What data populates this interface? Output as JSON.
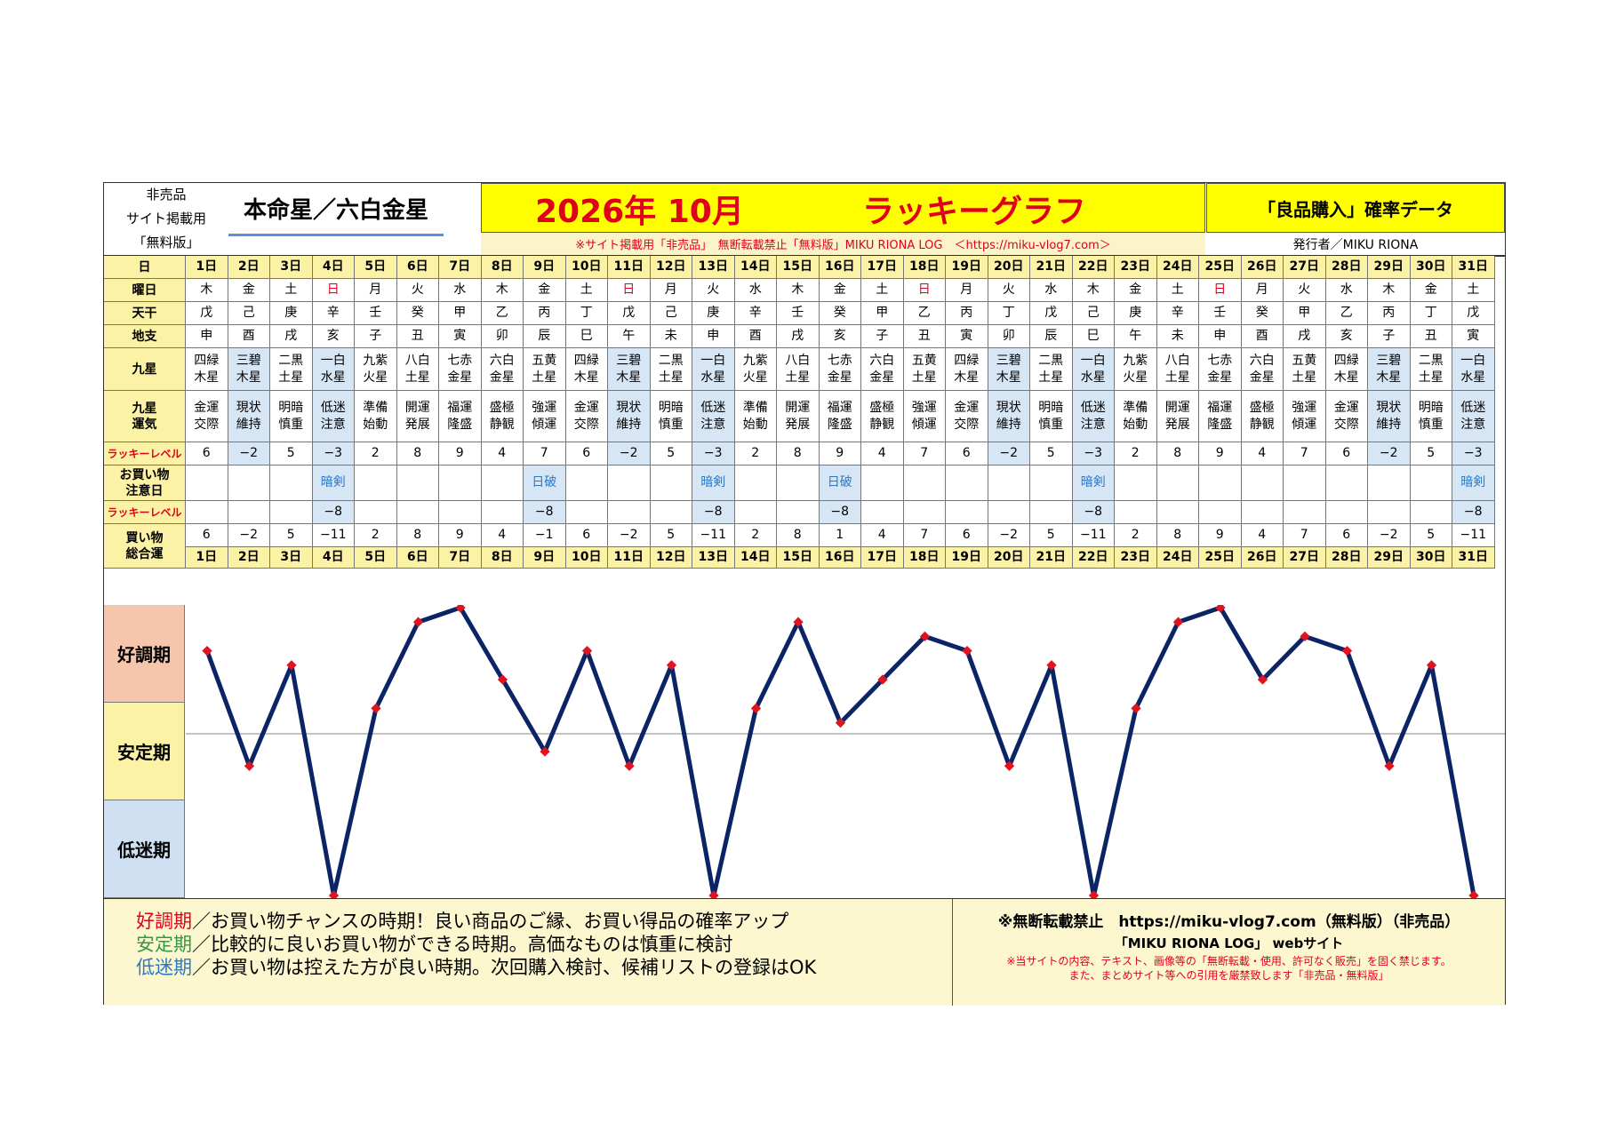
{
  "header": {
    "left_lines": [
      "非売品",
      "サイト掲載用",
      "「無料版」"
    ],
    "honmei": "本命星／六白金星",
    "year_month": "2026年 10月",
    "graph_title": "ラッキーグラフ",
    "data_label": "「良品購入」確率データ",
    "notice": "※サイト掲載用「非売品」　無断転載禁止「無料版」MIKU RIONA LOG　＜https://miku-vlog7.com＞",
    "publisher": "発行者／MIKU RIONA"
  },
  "row_labels": {
    "day": "日",
    "weekday": "曜日",
    "stem": "天干",
    "branch": "地支",
    "star": "九星",
    "star_luck": [
      "九星",
      "運気"
    ],
    "lucky_level": "ラッキーレベル",
    "caution": [
      "お買い物",
      "注意日"
    ],
    "lucky_level2": "ラッキーレベル",
    "total": [
      "買い物",
      "総合運"
    ]
  },
  "days": [
    {
      "day": "1日",
      "wd": "木",
      "stem": "戊",
      "branch": "申",
      "star": [
        "四緑",
        "木星"
      ],
      "luck": [
        "金運",
        "交際"
      ],
      "level": "6",
      "caution": "",
      "level2": "",
      "total": "6"
    },
    {
      "day": "2日",
      "wd": "金",
      "stem": "己",
      "branch": "酉",
      "star": [
        "三碧",
        "木星"
      ],
      "luck": [
        "現状",
        "維持"
      ],
      "level": "−2",
      "caution": "",
      "level2": "",
      "total": "−2"
    },
    {
      "day": "3日",
      "wd": "土",
      "stem": "庚",
      "branch": "戌",
      "star": [
        "二黒",
        "土星"
      ],
      "luck": [
        "明暗",
        "慎重"
      ],
      "level": "5",
      "caution": "",
      "level2": "",
      "total": "5"
    },
    {
      "day": "4日",
      "wd": "日",
      "stem": "辛",
      "branch": "亥",
      "star": [
        "一白",
        "水星"
      ],
      "luck": [
        "低迷",
        "注意"
      ],
      "level": "−3",
      "caution": "暗剣",
      "level2": "−8",
      "total": "−11"
    },
    {
      "day": "5日",
      "wd": "月",
      "stem": "壬",
      "branch": "子",
      "star": [
        "九紫",
        "火星"
      ],
      "luck": [
        "準備",
        "始動"
      ],
      "level": "2",
      "caution": "",
      "level2": "",
      "total": "2"
    },
    {
      "day": "6日",
      "wd": "火",
      "stem": "癸",
      "branch": "丑",
      "star": [
        "八白",
        "土星"
      ],
      "luck": [
        "開運",
        "発展"
      ],
      "level": "8",
      "caution": "",
      "level2": "",
      "total": "8"
    },
    {
      "day": "7日",
      "wd": "水",
      "stem": "甲",
      "branch": "寅",
      "star": [
        "七赤",
        "金星"
      ],
      "luck": [
        "福運",
        "隆盛"
      ],
      "level": "9",
      "caution": "",
      "level2": "",
      "total": "9"
    },
    {
      "day": "8日",
      "wd": "木",
      "stem": "乙",
      "branch": "卯",
      "star": [
        "六白",
        "金星"
      ],
      "luck": [
        "盛極",
        "静観"
      ],
      "level": "4",
      "caution": "",
      "level2": "",
      "total": "4"
    },
    {
      "day": "9日",
      "wd": "金",
      "stem": "丙",
      "branch": "辰",
      "star": [
        "五黄",
        "土星"
      ],
      "luck": [
        "強運",
        "傾運"
      ],
      "level": "7",
      "caution": "日破",
      "level2": "−8",
      "total": "−1"
    },
    {
      "day": "10日",
      "wd": "土",
      "stem": "丁",
      "branch": "巳",
      "star": [
        "四緑",
        "木星"
      ],
      "luck": [
        "金運",
        "交際"
      ],
      "level": "6",
      "caution": "",
      "level2": "",
      "total": "6"
    },
    {
      "day": "11日",
      "wd": "日",
      "stem": "戊",
      "branch": "午",
      "star": [
        "三碧",
        "木星"
      ],
      "luck": [
        "現状",
        "維持"
      ],
      "level": "−2",
      "caution": "",
      "level2": "",
      "total": "−2"
    },
    {
      "day": "12日",
      "wd": "月",
      "stem": "己",
      "branch": "未",
      "star": [
        "二黒",
        "土星"
      ],
      "luck": [
        "明暗",
        "慎重"
      ],
      "level": "5",
      "caution": "",
      "level2": "",
      "total": "5"
    },
    {
      "day": "13日",
      "wd": "火",
      "stem": "庚",
      "branch": "申",
      "star": [
        "一白",
        "水星"
      ],
      "luck": [
        "低迷",
        "注意"
      ],
      "level": "−3",
      "caution": "暗剣",
      "level2": "−8",
      "total": "−11"
    },
    {
      "day": "14日",
      "wd": "水",
      "stem": "辛",
      "branch": "酉",
      "star": [
        "九紫",
        "火星"
      ],
      "luck": [
        "準備",
        "始動"
      ],
      "level": "2",
      "caution": "",
      "level2": "",
      "total": "2"
    },
    {
      "day": "15日",
      "wd": "木",
      "stem": "壬",
      "branch": "戌",
      "star": [
        "八白",
        "土星"
      ],
      "luck": [
        "開運",
        "発展"
      ],
      "level": "8",
      "caution": "",
      "level2": "",
      "total": "8"
    },
    {
      "day": "16日",
      "wd": "金",
      "stem": "癸",
      "branch": "亥",
      "star": [
        "七赤",
        "金星"
      ],
      "luck": [
        "福運",
        "隆盛"
      ],
      "level": "9",
      "caution": "日破",
      "level2": "−8",
      "total": "1"
    },
    {
      "day": "17日",
      "wd": "土",
      "stem": "甲",
      "branch": "子",
      "star": [
        "六白",
        "金星"
      ],
      "luck": [
        "盛極",
        "静観"
      ],
      "level": "4",
      "caution": "",
      "level2": "",
      "total": "4"
    },
    {
      "day": "18日",
      "wd": "日",
      "stem": "乙",
      "branch": "丑",
      "star": [
        "五黄",
        "土星"
      ],
      "luck": [
        "強運",
        "傾運"
      ],
      "level": "7",
      "caution": "",
      "level2": "",
      "total": "7"
    },
    {
      "day": "19日",
      "wd": "月",
      "stem": "丙",
      "branch": "寅",
      "star": [
        "四緑",
        "木星"
      ],
      "luck": [
        "金運",
        "交際"
      ],
      "level": "6",
      "caution": "",
      "level2": "",
      "total": "6"
    },
    {
      "day": "20日",
      "wd": "火",
      "stem": "丁",
      "branch": "卯",
      "star": [
        "三碧",
        "木星"
      ],
      "luck": [
        "現状",
        "維持"
      ],
      "level": "−2",
      "caution": "",
      "level2": "",
      "total": "−2"
    },
    {
      "day": "21日",
      "wd": "水",
      "stem": "戊",
      "branch": "辰",
      "star": [
        "二黒",
        "土星"
      ],
      "luck": [
        "明暗",
        "慎重"
      ],
      "level": "5",
      "caution": "",
      "level2": "",
      "total": "5"
    },
    {
      "day": "22日",
      "wd": "木",
      "stem": "己",
      "branch": "巳",
      "star": [
        "一白",
        "水星"
      ],
      "luck": [
        "低迷",
        "注意"
      ],
      "level": "−3",
      "caution": "暗剣",
      "level2": "−8",
      "total": "−11"
    },
    {
      "day": "23日",
      "wd": "金",
      "stem": "庚",
      "branch": "午",
      "star": [
        "九紫",
        "火星"
      ],
      "luck": [
        "準備",
        "始動"
      ],
      "level": "2",
      "caution": "",
      "level2": "",
      "total": "2"
    },
    {
      "day": "24日",
      "wd": "土",
      "stem": "辛",
      "branch": "未",
      "star": [
        "八白",
        "土星"
      ],
      "luck": [
        "開運",
        "発展"
      ],
      "level": "8",
      "caution": "",
      "level2": "",
      "total": "8"
    },
    {
      "day": "25日",
      "wd": "日",
      "stem": "壬",
      "branch": "申",
      "star": [
        "七赤",
        "金星"
      ],
      "luck": [
        "福運",
        "隆盛"
      ],
      "level": "9",
      "caution": "",
      "level2": "",
      "total": "9"
    },
    {
      "day": "26日",
      "wd": "月",
      "stem": "癸",
      "branch": "酉",
      "star": [
        "六白",
        "金星"
      ],
      "luck": [
        "盛極",
        "静観"
      ],
      "level": "4",
      "caution": "",
      "level2": "",
      "total": "4"
    },
    {
      "day": "27日",
      "wd": "火",
      "stem": "甲",
      "branch": "戌",
      "star": [
        "五黄",
        "土星"
      ],
      "luck": [
        "強運",
        "傾運"
      ],
      "level": "7",
      "caution": "",
      "level2": "",
      "total": "7"
    },
    {
      "day": "28日",
      "wd": "水",
      "stem": "乙",
      "branch": "亥",
      "star": [
        "四緑",
        "木星"
      ],
      "luck": [
        "金運",
        "交際"
      ],
      "level": "6",
      "caution": "",
      "level2": "",
      "total": "6"
    },
    {
      "day": "29日",
      "wd": "木",
      "stem": "丙",
      "branch": "子",
      "star": [
        "三碧",
        "木星"
      ],
      "luck": [
        "現状",
        "維持"
      ],
      "level": "−2",
      "caution": "",
      "level2": "",
      "total": "−2"
    },
    {
      "day": "30日",
      "wd": "金",
      "stem": "丁",
      "branch": "丑",
      "star": [
        "二黒",
        "土星"
      ],
      "luck": [
        "明暗",
        "慎重"
      ],
      "level": "5",
      "caution": "",
      "level2": "",
      "total": "5"
    },
    {
      "day": "31日",
      "wd": "土",
      "stem": "戊",
      "branch": "寅",
      "star": [
        "一白",
        "水星"
      ],
      "luck": [
        "低迷",
        "注意"
      ],
      "level": "−3",
      "caution": "暗剣",
      "level2": "−8",
      "total": "−11"
    }
  ],
  "zones": {
    "good": "好調期",
    "stable": "安定期",
    "low": "低迷期"
  },
  "legend": {
    "good_term": "好調期",
    "good_text": "／お買い物チャンスの時期！良い商品のご縁、お買い得品の確率アップ",
    "stable_term": "安定期",
    "stable_text": "／比較的に良いお買い物ができる時期。高価なものは慎重に検討",
    "low_term": "低迷期",
    "low_text": "／お買い物は控えた方が良い時期。次回購入検討、候補リストの登録はOK"
  },
  "footer_right": {
    "line1": "※無断転載禁止　https://miku-vlog7.com（無料版）（非売品）",
    "line2": "「MIKU RIONA LOG」 webサイト",
    "line3": "※当サイトの内容、テキスト、画像等の「無断転載・使用、許可なく販売」を固く禁じます。",
    "line4": "また、まとめサイト等への引用を厳禁致します「非売品・無料版」"
  },
  "colors": {
    "line": "#0b2466",
    "marker": "#e0141e",
    "sunday": "#e0001b",
    "highlight": "#d7e6f5",
    "header_yellow": "#ffff00"
  },
  "chart_data": {
    "type": "line",
    "x": [
      "1日",
      "2日",
      "3日",
      "4日",
      "5日",
      "6日",
      "7日",
      "8日",
      "9日",
      "10日",
      "11日",
      "12日",
      "13日",
      "14日",
      "15日",
      "16日",
      "17日",
      "18日",
      "19日",
      "20日",
      "21日",
      "22日",
      "23日",
      "24日",
      "25日",
      "26日",
      "27日",
      "28日",
      "29日",
      "30日",
      "31日"
    ],
    "values": [
      6,
      -2,
      5,
      -11,
      2,
      8,
      9,
      4,
      -1,
      6,
      -2,
      5,
      -11,
      2,
      8,
      1,
      4,
      7,
      6,
      -2,
      5,
      -11,
      2,
      8,
      9,
      4,
      7,
      6,
      -2,
      5,
      -11
    ],
    "ylim": [
      -11,
      9
    ],
    "grid": false,
    "legend": "none"
  }
}
